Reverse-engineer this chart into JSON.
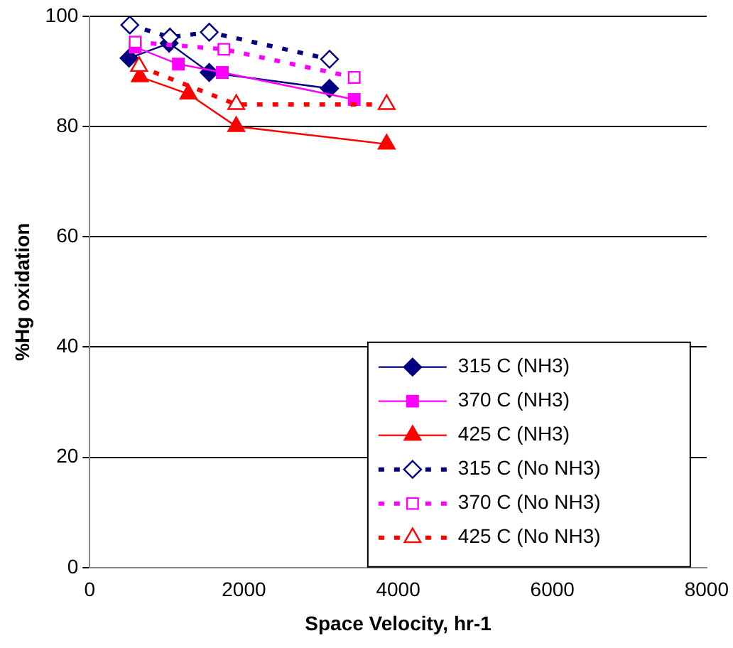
{
  "chart_data": {
    "type": "line",
    "xlabel": "Space Velocity, hr-1",
    "ylabel": "%Hg oxidation",
    "xlim": [
      0,
      8000
    ],
    "xticks": [
      0,
      2000,
      4000,
      6000,
      8000
    ],
    "ylim": [
      0,
      100
    ],
    "yticks": [
      0,
      20,
      40,
      60,
      80,
      100
    ],
    "grid": "y",
    "legend": "right",
    "series": [
      {
        "name": "315 C (NH3)",
        "color": "#000080",
        "marker": "diamond",
        "line_style": "solid",
        "x": [
          510,
          1030,
          1550,
          3110
        ],
        "values": [
          92.4,
          95.1,
          89.8,
          86.9
        ]
      },
      {
        "name": "370 C (NH3)",
        "color": "#ff00ff",
        "marker": "square",
        "line_style": "solid",
        "x": [
          590,
          1150,
          1720,
          3430
        ],
        "values": [
          94.4,
          91.3,
          89.8,
          84.9
        ]
      },
      {
        "name": "425 C (NH3)",
        "color": "#ff0000",
        "marker": "triangle",
        "line_style": "solid",
        "x": [
          650,
          1280,
          1900,
          3850
        ],
        "values": [
          89,
          85.9,
          80,
          76.8
        ]
      },
      {
        "name": "315 C (No NH3)",
        "color": "#000080",
        "marker": "diamond",
        "line_style": "dotted",
        "x": [
          520,
          1040,
          1550,
          3110
        ],
        "values": [
          98.4,
          96.2,
          97.1,
          92.2
        ]
      },
      {
        "name": "370 C (No NH3)",
        "color": "#ff00ff",
        "marker": "square",
        "line_style": "dotted",
        "x": [
          590,
          1740,
          3430
        ],
        "values": [
          95.3,
          94,
          88.9
        ]
      },
      {
        "name": "425 C (No NH3)",
        "color": "#ff0000",
        "marker": "triangle",
        "line_style": "dotted",
        "x": [
          640,
          1900,
          3850
        ],
        "values": [
          90.9,
          84,
          84
        ]
      }
    ]
  }
}
